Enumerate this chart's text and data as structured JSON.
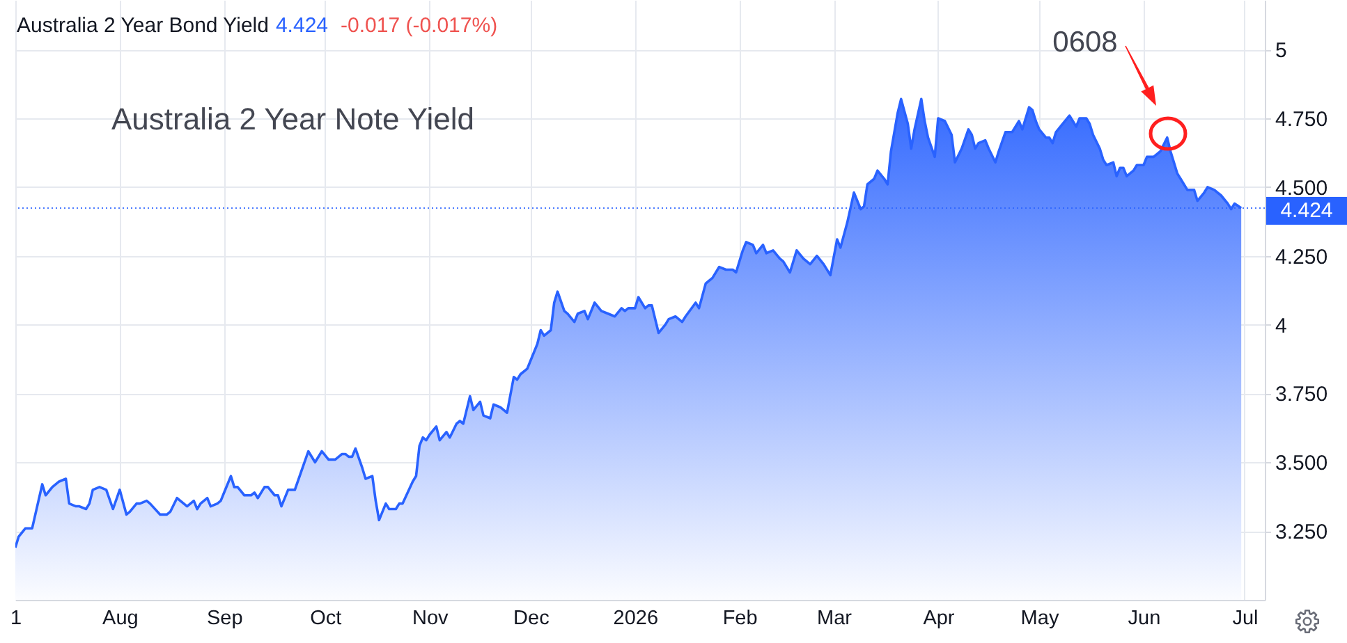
{
  "chart_data": {
    "type": "area",
    "title": "Australia 2 Year Bond Yield",
    "annotations": [
      "4.424",
      "-0.017 (-0.017%)",
      "Australia 2 Year Note Yield",
      "0608"
    ],
    "x": [
      "2025-07-01",
      "2025-07-02",
      "2025-07-04",
      "2025-07-06",
      "2025-07-09",
      "2025-07-10",
      "2025-07-12",
      "2025-07-14",
      "2025-07-16",
      "2025-07-17",
      "2025-07-19",
      "2025-07-20",
      "2025-07-22",
      "2025-07-23",
      "2025-07-24",
      "2025-07-26",
      "2025-07-28",
      "2025-07-30",
      "2025-08-01",
      "2025-08-03",
      "2025-08-04",
      "2025-08-06",
      "2025-08-07",
      "2025-08-09",
      "2025-08-10",
      "2025-08-13",
      "2025-08-15",
      "2025-08-16",
      "2025-08-18",
      "2025-08-20",
      "2025-08-21",
      "2025-08-23",
      "2025-08-24",
      "2025-08-25",
      "2025-08-27",
      "2025-08-28",
      "2025-08-30",
      "2025-08-31",
      "2025-09-01",
      "2025-09-03",
      "2025-09-04",
      "2025-09-05",
      "2025-09-07",
      "2025-09-09",
      "2025-09-10",
      "2025-09-11",
      "2025-09-13",
      "2025-09-14",
      "2025-09-16",
      "2025-09-17",
      "2025-09-18",
      "2025-09-20",
      "2025-09-22",
      "2025-09-24",
      "2025-09-26",
      "2025-09-28",
      "2025-09-30",
      "2025-10-02",
      "2025-10-04",
      "2025-10-06",
      "2025-10-07",
      "2025-10-08",
      "2025-10-09",
      "2025-10-10",
      "2025-10-12",
      "2025-10-13",
      "2025-10-15",
      "2025-10-16",
      "2025-10-17",
      "2025-10-19",
      "2025-10-20",
      "2025-10-22",
      "2025-10-23",
      "2025-10-24",
      "2025-10-27",
      "2025-10-28",
      "2025-10-29",
      "2025-10-30",
      "2025-10-31",
      "2025-11-01",
      "2025-11-03",
      "2025-11-04",
      "2025-11-06",
      "2025-11-07",
      "2025-11-09",
      "2025-11-10",
      "2025-11-11",
      "2025-11-13",
      "2025-11-14",
      "2025-11-16",
      "2025-11-17",
      "2025-11-19",
      "2025-11-20",
      "2025-11-22",
      "2025-11-24",
      "2025-11-26",
      "2025-11-27",
      "2025-11-28",
      "2025-11-30",
      "2025-12-01",
      "2025-12-03",
      "2025-12-04",
      "2025-12-05",
      "2025-12-07",
      "2025-12-08",
      "2025-12-09",
      "2025-12-11",
      "2025-12-12",
      "2025-12-14",
      "2025-12-15",
      "2025-12-17",
      "2025-12-18",
      "2025-12-20",
      "2025-12-22",
      "2025-12-24",
      "2025-12-26",
      "2025-12-28",
      "2025-12-29",
      "2025-12-30",
      "2026-01-01",
      "2026-01-02",
      "2026-01-04",
      "2026-01-05",
      "2026-01-06",
      "2026-01-08",
      "2026-01-10",
      "2026-01-11",
      "2026-01-13",
      "2026-01-15",
      "2026-01-16",
      "2026-01-19",
      "2026-01-20",
      "2026-01-22",
      "2026-01-24",
      "2026-01-26",
      "2026-01-28",
      "2026-01-30",
      "2026-01-31",
      "2026-02-02",
      "2026-02-03",
      "2026-02-05",
      "2026-02-06",
      "2026-02-08",
      "2026-02-09",
      "2026-02-11",
      "2026-02-13",
      "2026-02-14",
      "2026-02-16",
      "2026-02-18",
      "2026-02-20",
      "2026-02-22",
      "2026-02-24",
      "2026-02-26",
      "2026-02-28",
      "2026-03-02",
      "2026-03-03",
      "2026-03-05",
      "2026-03-07",
      "2026-03-09",
      "2026-03-10",
      "2026-03-11",
      "2026-03-13",
      "2026-03-14",
      "2026-03-16",
      "2026-03-17",
      "2026-03-18",
      "2026-03-20",
      "2026-03-21",
      "2026-03-23",
      "2026-03-24",
      "2026-03-25",
      "2026-03-27",
      "2026-03-28",
      "2026-03-29",
      "2026-03-31",
      "2026-04-01",
      "2026-04-03",
      "2026-04-05",
      "2026-04-06",
      "2026-04-08",
      "2026-04-10",
      "2026-04-11",
      "2026-04-12",
      "2026-04-13",
      "2026-04-15",
      "2026-04-16",
      "2026-04-18",
      "2026-04-19",
      "2026-04-21",
      "2026-04-23",
      "2026-04-25",
      "2026-04-26",
      "2026-04-27",
      "2026-04-28",
      "2026-04-29",
      "2026-04-30",
      "2026-05-01",
      "2026-05-03",
      "2026-05-04",
      "2026-05-05",
      "2026-05-06",
      "2026-05-08",
      "2026-05-10",
      "2026-05-11",
      "2026-05-12",
      "2026-05-13",
      "2026-05-15",
      "2026-05-16",
      "2026-05-17",
      "2026-05-19",
      "2026-05-20",
      "2026-05-21",
      "2026-05-23",
      "2026-05-24",
      "2026-05-25",
      "2026-05-26",
      "2026-05-27",
      "2026-05-29",
      "2026-05-30",
      "2026-06-01",
      "2026-06-02",
      "2026-06-04",
      "2026-06-06",
      "2026-06-08",
      "2026-06-09",
      "2026-06-11",
      "2026-06-12",
      "2026-06-14",
      "2026-06-15",
      "2026-06-16",
      "2026-06-17",
      "2026-06-19",
      "2026-06-20",
      "2026-06-22",
      "2026-06-23",
      "2026-06-24",
      "2026-06-26",
      "2026-06-27",
      "2026-06-28",
      "2026-06-30"
    ],
    "series": [
      {
        "color": "#2962ff",
        "values": [
          3.19,
          3.23,
          3.26,
          3.26,
          3.42,
          3.38,
          3.41,
          3.43,
          3.44,
          3.35,
          3.34,
          3.34,
          3.33,
          3.35,
          3.4,
          3.41,
          3.4,
          3.33,
          3.4,
          3.31,
          3.32,
          3.35,
          3.35,
          3.36,
          3.35,
          3.31,
          3.31,
          3.32,
          3.37,
          3.35,
          3.34,
          3.36,
          3.33,
          3.35,
          3.37,
          3.34,
          3.35,
          3.36,
          3.39,
          3.45,
          3.41,
          3.41,
          3.38,
          3.38,
          3.39,
          3.37,
          3.41,
          3.41,
          3.38,
          3.38,
          3.34,
          3.4,
          3.4,
          3.47,
          3.54,
          3.5,
          3.54,
          3.51,
          3.51,
          3.53,
          3.53,
          3.52,
          3.52,
          3.55,
          3.48,
          3.44,
          3.45,
          3.36,
          3.29,
          3.35,
          3.33,
          3.33,
          3.35,
          3.35,
          3.43,
          3.45,
          3.56,
          3.59,
          3.58,
          3.6,
          3.63,
          3.58,
          3.61,
          3.59,
          3.64,
          3.65,
          3.64,
          3.74,
          3.69,
          3.72,
          3.67,
          3.66,
          3.71,
          3.7,
          3.68,
          3.81,
          3.8,
          3.82,
          3.84,
          3.87,
          3.93,
          3.98,
          3.96,
          3.98,
          4.08,
          4.12,
          4.05,
          4.04,
          4.01,
          4.04,
          4.05,
          4.02,
          4.08,
          4.05,
          4.04,
          4.03,
          4.06,
          4.05,
          4.06,
          4.06,
          4.1,
          4.06,
          4.07,
          4.07,
          3.97,
          4.0,
          4.02,
          4.03,
          4.01,
          4.03,
          4.08,
          4.06,
          4.15,
          4.17,
          4.21,
          4.2,
          4.2,
          4.19,
          4.27,
          4.3,
          4.29,
          4.26,
          4.29,
          4.26,
          4.27,
          4.24,
          4.23,
          4.19,
          4.27,
          4.24,
          4.22,
          4.25,
          4.22,
          4.18,
          4.31,
          4.28,
          4.37,
          4.48,
          4.42,
          4.43,
          4.51,
          4.53,
          4.56,
          4.53,
          4.51,
          4.63,
          4.77,
          4.82,
          4.73,
          4.64,
          4.71,
          4.82,
          4.74,
          4.68,
          4.61,
          4.75,
          4.74,
          4.69,
          4.59,
          4.64,
          4.71,
          4.69,
          4.64,
          4.66,
          4.67,
          4.64,
          4.59,
          4.63,
          4.7,
          4.7,
          4.74,
          4.71,
          4.75,
          4.79,
          4.78,
          4.74,
          4.71,
          4.68,
          4.68,
          4.66,
          4.7,
          4.73,
          4.76,
          4.74,
          4.72,
          4.75,
          4.75,
          4.73,
          4.69,
          4.64,
          4.6,
          4.58,
          4.59,
          4.54,
          4.57,
          4.57,
          4.54,
          4.56,
          4.58,
          4.58,
          4.61,
          4.61,
          4.63,
          4.68,
          4.63,
          4.55,
          4.53,
          4.49,
          4.49,
          4.49,
          4.45,
          4.48,
          4.5,
          4.49,
          4.48,
          4.47,
          4.44,
          4.42,
          4.44,
          4.424
        ]
      }
    ],
    "xlim": [
      "2025-07-01",
      "2026-07-07"
    ],
    "xticks": [
      {
        "value": "2025-07-01",
        "label": "1"
      },
      {
        "value": "2025-08-01",
        "label": "Aug"
      },
      {
        "value": "2025-09-01",
        "label": "Sep"
      },
      {
        "value": "2025-10-01",
        "label": "Oct"
      },
      {
        "value": "2025-11-01",
        "label": "Nov"
      },
      {
        "value": "2025-12-01",
        "label": "Dec"
      },
      {
        "value": "2026-01-01",
        "label": "2026"
      },
      {
        "value": "2026-02-01",
        "label": "Feb"
      },
      {
        "value": "2026-03-01",
        "label": "Mar"
      },
      {
        "value": "2026-04-01",
        "label": "Apr"
      },
      {
        "value": "2026-05-01",
        "label": "May"
      },
      {
        "value": "2026-06-01",
        "label": "Jun"
      },
      {
        "value": "2026-07-01",
        "label": "Jul"
      }
    ],
    "ylim": [
      3.0,
      5.18
    ],
    "yticks": [
      {
        "value": 3.25,
        "label": "3.250"
      },
      {
        "value": 3.5,
        "label": "3.500"
      },
      {
        "value": 3.75,
        "label": "3.750"
      },
      4,
      {
        "value": 4.25,
        "label": "4.250"
      },
      {
        "value": 4.5,
        "label": "4.500"
      },
      {
        "value": 4.75,
        "label": "4.750"
      },
      5
    ],
    "ref_lines": [
      {
        "axis": "y",
        "value": 4.424,
        "label": "4.424",
        "color": "#2962ff",
        "line_style": "dotted"
      }
    ],
    "grid": true
  }
}
